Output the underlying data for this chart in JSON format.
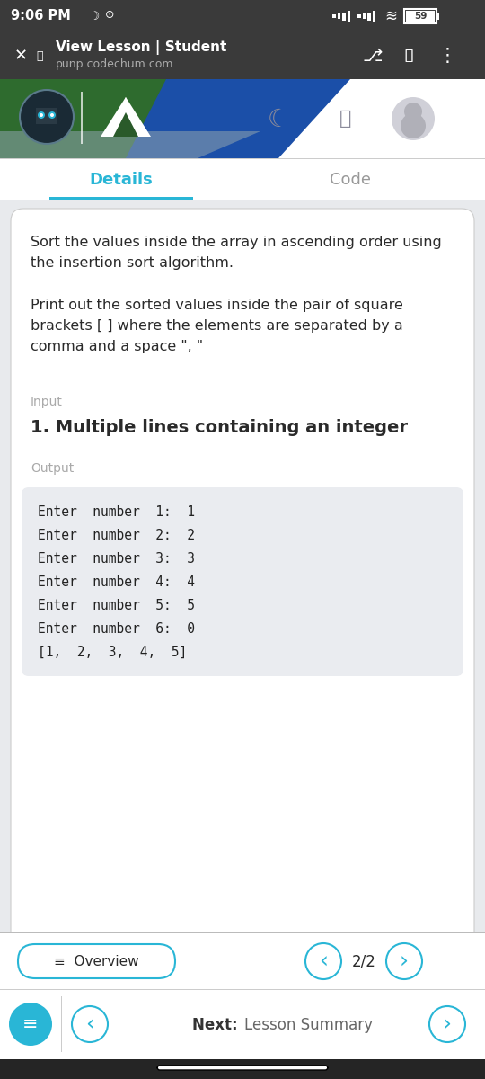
{
  "status_bar_time": "9:06 PM",
  "status_bar_bg": "#3a3a3a",
  "status_bar_text_color": "#ffffff",
  "battery_pct": "59",
  "browser_bar_bg": "#3a3a3a",
  "browser_title": "View Lesson | Student",
  "browser_url": "punp.codechum.com",
  "browser_text_color": "#ffffff",
  "tab_details": "Details",
  "tab_code": "Code",
  "tab_active_color": "#29b6d6",
  "tab_inactive_color": "#999999",
  "tab_underline_color": "#29b6d6",
  "card_bg": "#ffffff",
  "desc_text1": "Sort the values inside the array in ascending order using\nthe insertion sort algorithm.",
  "desc_text2": "Print out the sorted values inside the pair of square\nbrackets [ ] where the elements are separated by a\ncomma and a space \", \"",
  "input_label": "Input",
  "input_label_color": "#aaaaaa",
  "input_text": "1. Multiple lines containing an integer",
  "output_label": "Output",
  "output_label_color": "#aaaaaa",
  "output_box_bg": "#eaecf0",
  "output_lines": [
    "Enter  number  1:  1",
    "Enter  number  2:  2",
    "Enter  number  3:  3",
    "Enter  number  4:  4",
    "Enter  number  5:  5",
    "Enter  number  6:  0",
    "[1,  2,  3,  4,  5]"
  ],
  "output_text_color": "#222222",
  "overview_text": "Overview",
  "page_text": "2/2",
  "next_text": "Lesson Summary",
  "next_bold": "Next:",
  "page_bg": "#e8eaed",
  "main_text_color": "#2a2a2a",
  "desc_font_size": 11.5,
  "input_font_size": 14,
  "output_font_size": 10.5,
  "header_green": "#2e6b2e",
  "header_blue": "#1b4fa8",
  "header_wave_gray": "#8fa0b0",
  "icon_color_gray": "#8a8a9a",
  "teal_color": "#29b6d6",
  "bottom_nav_teal": "#29b6d6",
  "bottom_bar_bg": "#ffffff",
  "bottom_divider": "#cccccc"
}
